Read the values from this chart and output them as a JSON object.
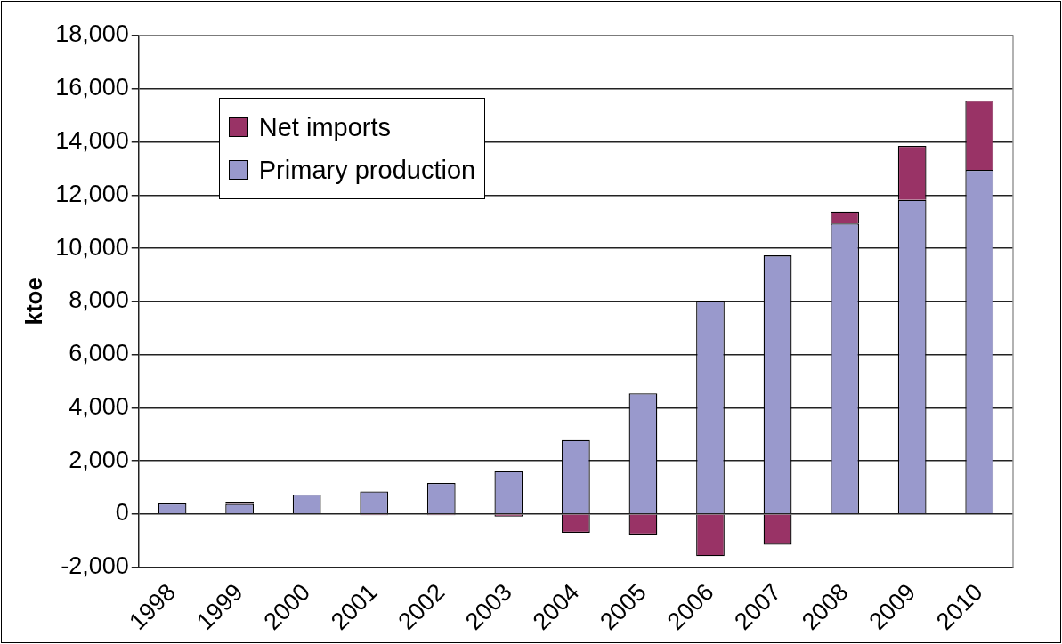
{
  "chart_data": {
    "type": "bar",
    "ylabel": "ktoe",
    "categories": [
      "1998",
      "1999",
      "2000",
      "2001",
      "2002",
      "2003",
      "2004",
      "2005",
      "2006",
      "2007",
      "2008",
      "2009",
      "2010"
    ],
    "series": [
      {
        "name": "Primary production",
        "color": "#9999cc",
        "values": [
          400,
          380,
          730,
          850,
          1170,
          1610,
          2780,
          4540,
          8030,
          9730,
          10930,
          11820,
          12950
        ]
      },
      {
        "name": "Net imports",
        "color": "#993366",
        "values": [
          0,
          80,
          0,
          -50,
          -50,
          -100,
          -710,
          -780,
          -1590,
          -1160,
          450,
          2030,
          2610
        ]
      }
    ],
    "stacked": true,
    "ylim": [
      -2000,
      18000
    ],
    "yticks": [
      {
        "value": -2000,
        "label": "-2,000"
      },
      0,
      {
        "value": 2000,
        "label": "2,000"
      },
      {
        "value": 4000,
        "label": "4,000"
      },
      {
        "value": 6000,
        "label": "6,000"
      },
      {
        "value": 8000,
        "label": "8,000"
      },
      {
        "value": 10000,
        "label": "10,000"
      },
      {
        "value": 12000,
        "label": "12,000"
      },
      {
        "value": 14000,
        "label": "14,000"
      },
      {
        "value": 16000,
        "label": "16,000"
      },
      {
        "value": 18000,
        "label": "18,000"
      }
    ],
    "grid": "y",
    "legend": "top left"
  }
}
